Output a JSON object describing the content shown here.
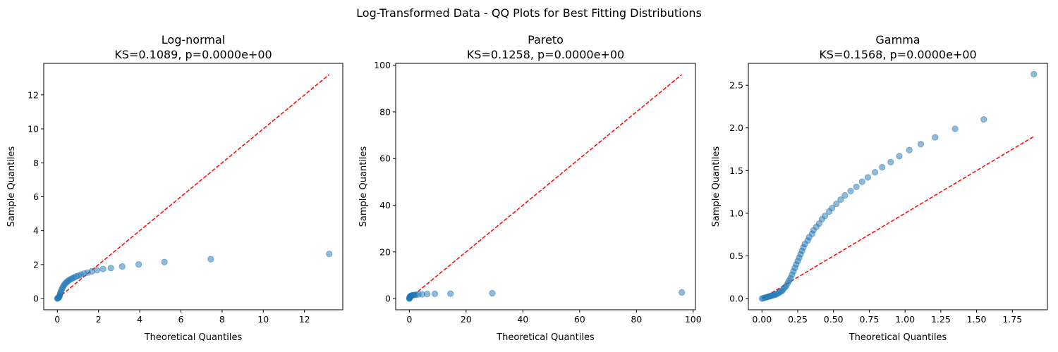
{
  "figure": {
    "suptitle": "Log-Transformed Data - QQ Plots for Best Fitting Distributions",
    "point_color": "#1f77b4",
    "line_color": "#ff0000"
  },
  "chart_data": [
    {
      "type": "scatter",
      "title": "Log-normal",
      "subtitle": "KS=0.1089, p=0.0000e+00",
      "xlabel": "Theoretical Quantiles",
      "ylabel": "Sample Quantiles",
      "xlim": [
        -0.66,
        13.86
      ],
      "ylim": [
        -0.66,
        13.86
      ],
      "xticks": [
        0,
        2,
        4,
        6,
        8,
        10,
        12
      ],
      "yticks": [
        0,
        2,
        4,
        6,
        8,
        10,
        12
      ],
      "xtick_labels": [
        "0",
        "2",
        "4",
        "6",
        "8",
        "10",
        "12"
      ],
      "ytick_labels": [
        "0",
        "2",
        "4",
        "6",
        "8",
        "10",
        "12"
      ],
      "reference_line": {
        "x": [
          0,
          13.2
        ],
        "y": [
          0,
          13.2
        ]
      },
      "points": [
        [
          0,
          0
        ],
        [
          0.02,
          0.02
        ],
        [
          0.04,
          0.04
        ],
        [
          0.06,
          0.06
        ],
        [
          0.08,
          0.09
        ],
        [
          0.1,
          0.13
        ],
        [
          0.12,
          0.2
        ],
        [
          0.14,
          0.3
        ],
        [
          0.17,
          0.4
        ],
        [
          0.2,
          0.5
        ],
        [
          0.24,
          0.6
        ],
        [
          0.28,
          0.7
        ],
        [
          0.33,
          0.8
        ],
        [
          0.38,
          0.88
        ],
        [
          0.44,
          0.95
        ],
        [
          0.5,
          1.02
        ],
        [
          0.57,
          1.08
        ],
        [
          0.65,
          1.14
        ],
        [
          0.73,
          1.19
        ],
        [
          0.82,
          1.25
        ],
        [
          0.92,
          1.3
        ],
        [
          1.03,
          1.35
        ],
        [
          1.15,
          1.41
        ],
        [
          1.3,
          1.47
        ],
        [
          1.47,
          1.53
        ],
        [
          1.68,
          1.6
        ],
        [
          1.93,
          1.67
        ],
        [
          2.22,
          1.74
        ],
        [
          2.6,
          1.8
        ],
        [
          3.15,
          1.89
        ],
        [
          3.95,
          2.01
        ],
        [
          5.2,
          2.15
        ],
        [
          7.45,
          2.32
        ],
        [
          13.2,
          2.63
        ]
      ]
    },
    {
      "type": "scatter",
      "title": "Pareto",
      "subtitle": "KS=0.1258, p=0.0000e+00",
      "xlabel": "Theoretical Quantiles",
      "ylabel": "Sample Quantiles",
      "xlim": [
        -4.8,
        100.8
      ],
      "ylim": [
        -4.8,
        100.8
      ],
      "xticks": [
        0,
        20,
        40,
        60,
        80,
        100
      ],
      "yticks": [
        0,
        20,
        40,
        60,
        80,
        100
      ],
      "xtick_labels": [
        "0",
        "20",
        "40",
        "60",
        "80",
        "100"
      ],
      "ytick_labels": [
        "0",
        "20",
        "40",
        "60",
        "80",
        "100"
      ],
      "reference_line": {
        "x": [
          0,
          96
        ],
        "y": [
          0,
          96
        ]
      },
      "points": [
        [
          0,
          0
        ],
        [
          0.05,
          0.1
        ],
        [
          0.1,
          0.3
        ],
        [
          0.15,
          0.5
        ],
        [
          0.2,
          0.7
        ],
        [
          0.3,
          0.85
        ],
        [
          0.4,
          1.0
        ],
        [
          0.5,
          1.1
        ],
        [
          0.65,
          1.2
        ],
        [
          0.8,
          1.28
        ],
        [
          1.0,
          1.35
        ],
        [
          1.3,
          1.45
        ],
        [
          1.7,
          1.55
        ],
        [
          2.3,
          1.65
        ],
        [
          3.2,
          1.75
        ],
        [
          4.5,
          1.85
        ],
        [
          6.3,
          1.95
        ],
        [
          9.0,
          2.02
        ],
        [
          14.5,
          2.1
        ],
        [
          29.2,
          2.3
        ],
        [
          96.0,
          2.63
        ]
      ]
    },
    {
      "type": "scatter",
      "title": "Gamma",
      "subtitle": "KS=0.1568, p=0.0000e+00",
      "xlabel": "Theoretical Quantiles",
      "ylabel": "Sample Quantiles",
      "xlim": [
        -0.095,
        1.995
      ],
      "ylim": [
        -0.131,
        2.757
      ],
      "xticks": [
        0,
        0.25,
        0.5,
        0.75,
        1.0,
        1.25,
        1.5,
        1.75
      ],
      "yticks": [
        0,
        0.5,
        1.0,
        1.5,
        2.0,
        2.5
      ],
      "xtick_labels": [
        "0.00",
        "0.25",
        "0.50",
        "0.75",
        "1.00",
        "1.25",
        "1.50",
        "1.75"
      ],
      "ytick_labels": [
        "0.0",
        "0.5",
        "1.0",
        "1.5",
        "2.0",
        "2.5"
      ],
      "reference_line": {
        "x": [
          0,
          1.9
        ],
        "y": [
          0,
          1.9
        ]
      },
      "points": [
        [
          0,
          0
        ],
        [
          0.01,
          0.005
        ],
        [
          0.02,
          0.01
        ],
        [
          0.03,
          0.015
        ],
        [
          0.04,
          0.02
        ],
        [
          0.05,
          0.025
        ],
        [
          0.06,
          0.03
        ],
        [
          0.07,
          0.035
        ],
        [
          0.08,
          0.04
        ],
        [
          0.09,
          0.045
        ],
        [
          0.1,
          0.05
        ],
        [
          0.11,
          0.06
        ],
        [
          0.12,
          0.07
        ],
        [
          0.13,
          0.08
        ],
        [
          0.14,
          0.09
        ],
        [
          0.15,
          0.11
        ],
        [
          0.16,
          0.13
        ],
        [
          0.17,
          0.15
        ],
        [
          0.18,
          0.18
        ],
        [
          0.19,
          0.21
        ],
        [
          0.2,
          0.24
        ],
        [
          0.21,
          0.28
        ],
        [
          0.22,
          0.32
        ],
        [
          0.23,
          0.36
        ],
        [
          0.24,
          0.4
        ],
        [
          0.25,
          0.44
        ],
        [
          0.26,
          0.48
        ],
        [
          0.27,
          0.52
        ],
        [
          0.28,
          0.56
        ],
        [
          0.29,
          0.6
        ],
        [
          0.3,
          0.64
        ],
        [
          0.32,
          0.68
        ],
        [
          0.33,
          0.72
        ],
        [
          0.35,
          0.76
        ],
        [
          0.36,
          0.8
        ],
        [
          0.38,
          0.84
        ],
        [
          0.4,
          0.88
        ],
        [
          0.42,
          0.93
        ],
        [
          0.44,
          0.97
        ],
        [
          0.47,
          1.02
        ],
        [
          0.49,
          1.06
        ],
        [
          0.52,
          1.11
        ],
        [
          0.55,
          1.16
        ],
        [
          0.58,
          1.21
        ],
        [
          0.62,
          1.26
        ],
        [
          0.66,
          1.31
        ],
        [
          0.7,
          1.37
        ],
        [
          0.74,
          1.42
        ],
        [
          0.79,
          1.48
        ],
        [
          0.84,
          1.54
        ],
        [
          0.9,
          1.6
        ],
        [
          0.96,
          1.67
        ],
        [
          1.03,
          1.74
        ],
        [
          1.11,
          1.81
        ],
        [
          1.21,
          1.89
        ],
        [
          1.35,
          1.99
        ],
        [
          1.55,
          2.1
        ],
        [
          1.9,
          2.63
        ]
      ]
    }
  ]
}
